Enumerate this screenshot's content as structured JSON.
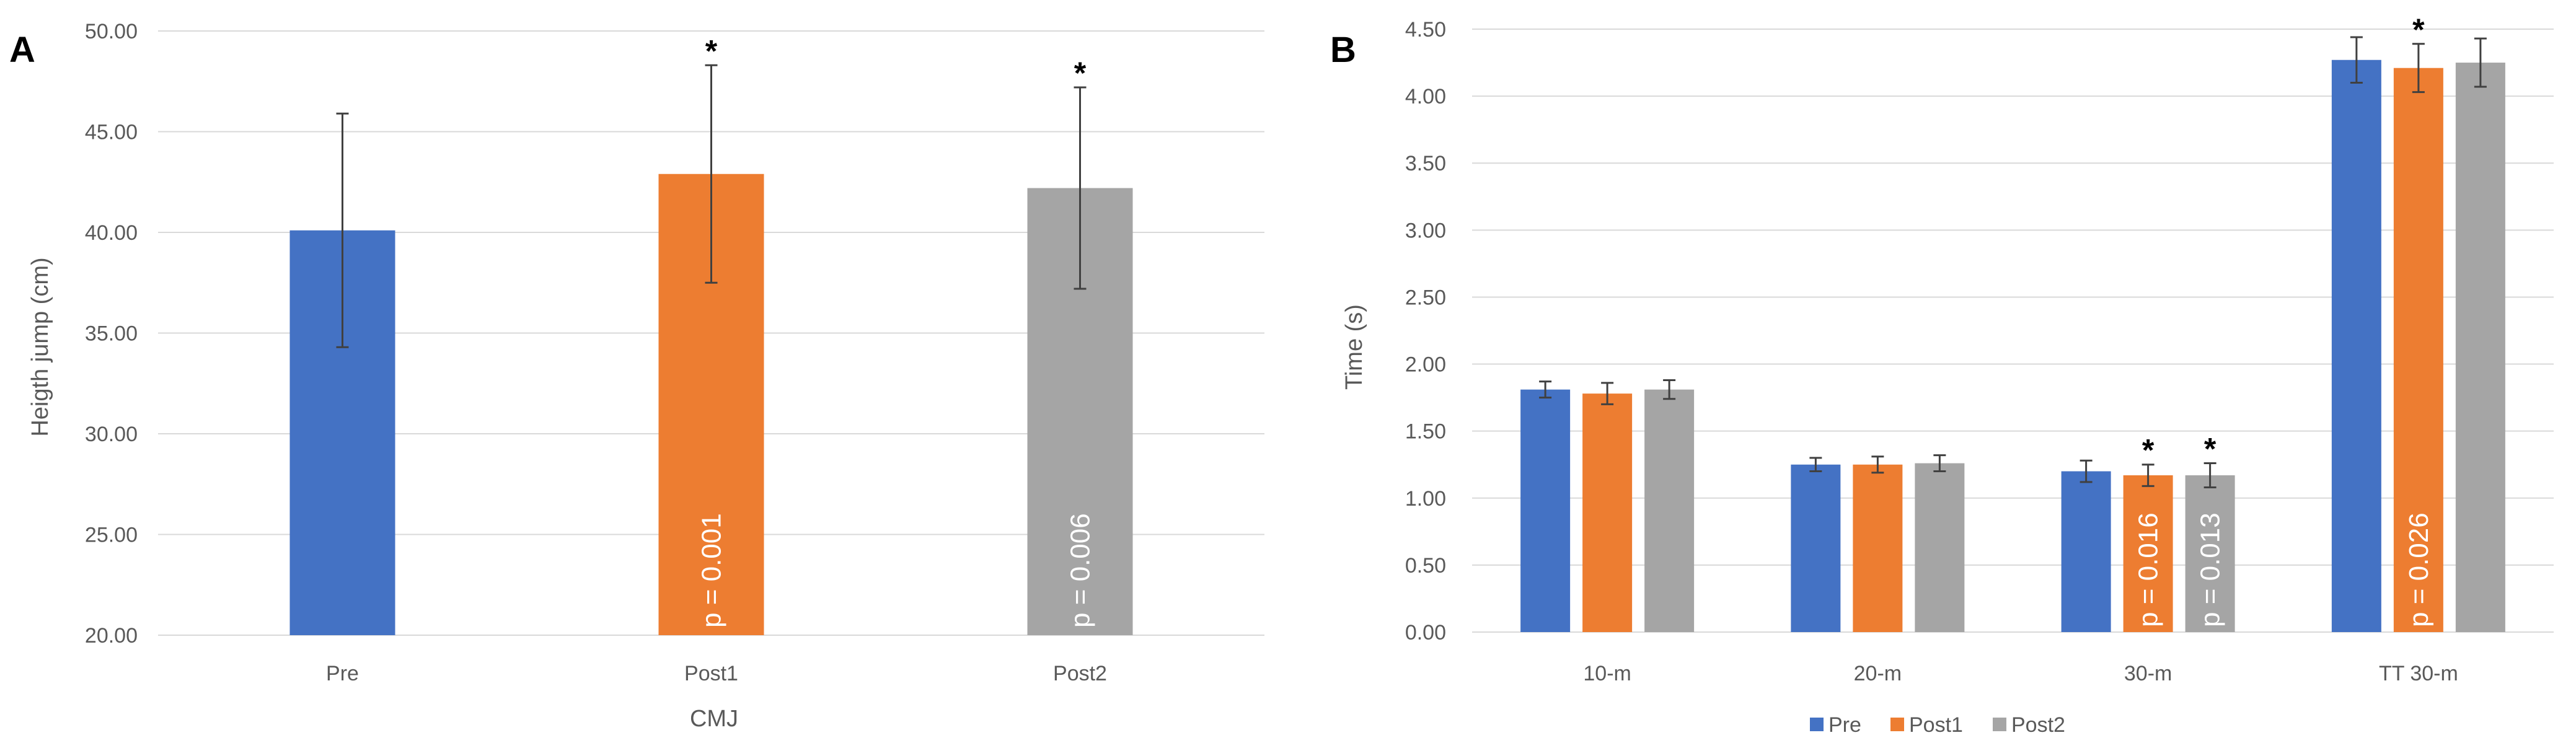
{
  "chart_data": [
    {
      "type": "bar",
      "panel_label": "A",
      "xlabel": "CMJ",
      "ylabel": "Heigth jump (cm)",
      "ylim": [
        20,
        50
      ],
      "ytick_step": 5,
      "ytick_labels": [
        "20.00",
        "25.00",
        "30.00",
        "35.00",
        "40.00",
        "45.00",
        "50.00"
      ],
      "categories": [
        "Pre",
        "Post1",
        "Post2"
      ],
      "values": [
        40.1,
        42.9,
        42.2
      ],
      "errors": [
        5.8,
        5.4,
        5.0
      ],
      "colors": [
        "#4472C4",
        "#ED7D31",
        "#A5A5A5"
      ],
      "significance": [
        "",
        "*",
        "*"
      ],
      "bar_labels": [
        "",
        "p = 0.001",
        "p = 0.006"
      ]
    },
    {
      "type": "bar",
      "panel_label": "B",
      "xlabel": "",
      "ylabel": "Time (s)",
      "ylim": [
        0,
        4.5
      ],
      "ytick_step": 0.5,
      "ytick_labels": [
        "0.00",
        "0.50",
        "1.00",
        "1.50",
        "2.00",
        "2.50",
        "3.00",
        "3.50",
        "4.00",
        "4.50"
      ],
      "categories": [
        "10-m",
        "20-m",
        "30-m",
        "TT 30-m"
      ],
      "series": [
        {
          "name": "Pre",
          "color": "#4472C4",
          "values": [
            1.81,
            1.25,
            1.2,
            4.27
          ],
          "errors": [
            0.06,
            0.05,
            0.08,
            0.17
          ],
          "significance": [
            "",
            "",
            "",
            ""
          ],
          "bar_labels": [
            "",
            "",
            "",
            ""
          ]
        },
        {
          "name": "Post1",
          "color": "#ED7D31",
          "values": [
            1.78,
            1.25,
            1.17,
            4.21
          ],
          "errors": [
            0.08,
            0.06,
            0.08,
            0.18
          ],
          "significance": [
            "",
            "",
            "*",
            "*"
          ],
          "bar_labels": [
            "",
            "",
            "p = 0.016",
            "p = 0.026"
          ]
        },
        {
          "name": "Post2",
          "color": "#A5A5A5",
          "values": [
            1.81,
            1.26,
            1.17,
            4.25
          ],
          "errors": [
            0.07,
            0.06,
            0.09,
            0.18
          ],
          "significance": [
            "",
            "",
            "*",
            ""
          ],
          "bar_labels": [
            "",
            "",
            "p = 0.013",
            ""
          ]
        }
      ],
      "legend": [
        "Pre",
        "Post1",
        "Post2"
      ],
      "legend_position": "bottom"
    }
  ]
}
